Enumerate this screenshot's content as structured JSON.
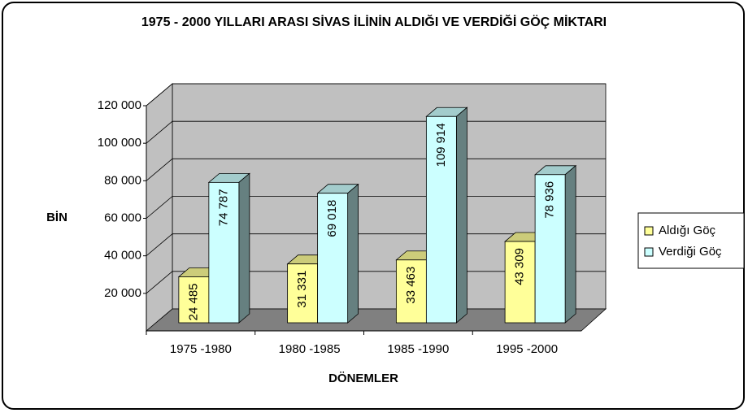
{
  "chart_data": {
    "type": "bar3d",
    "title": "1975 - 2000 YILLARI ARASI SİVAS İLİNİN ALDIĞI VE VERDİĞİ GÖÇ MİKTARI",
    "xlabel": "DÖNEMLER",
    "ylabel": "BİN",
    "categories": [
      "1975 -1980",
      "1980 -1985",
      "1985 -1990",
      "1995 -2000"
    ],
    "series": [
      {
        "name": "Aldığı Göç",
        "color": "#ffff99",
        "values": [
          24485,
          31331,
          33463,
          43309
        ],
        "value_labels": [
          "24 485",
          "31 331",
          "33 463",
          "43 309"
        ]
      },
      {
        "name": "Verdiği Göç",
        "color": "#ccffff",
        "values": [
          74787,
          69018,
          109914,
          78936
        ],
        "value_labels": [
          "74 787",
          "69 018",
          "109 914",
          "78 936"
        ]
      }
    ],
    "ylim": [
      0,
      120000
    ],
    "yticks": [
      {
        "value": 20000,
        "label": "20 000"
      },
      {
        "value": 40000,
        "label": "40 000"
      },
      {
        "value": 60000,
        "label": "60 000"
      },
      {
        "value": 80000,
        "label": "80 000"
      },
      {
        "value": 100000,
        "label": "100 000"
      },
      {
        "value": 120000,
        "label": "120 000"
      }
    ],
    "grid": true,
    "legend": "right"
  }
}
